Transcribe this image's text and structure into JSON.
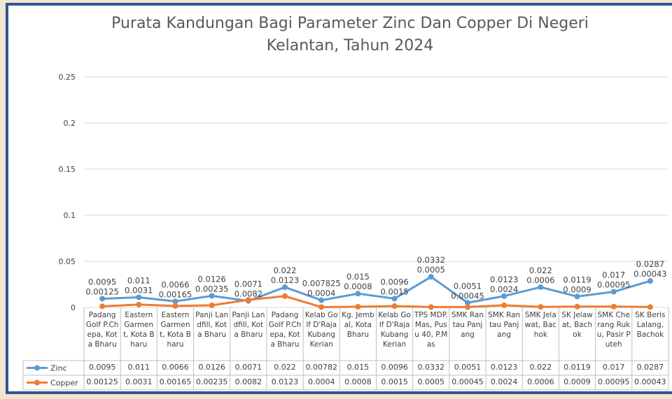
{
  "chart_data": {
    "type": "line",
    "title": "Purata Kandungan Bagi Parameter Zinc Dan Copper Di Negeri Kelantan, Tahun 2024",
    "categories": [
      "Padang Golf P.Chepa, Kota Bharu",
      "Eastern Garment, Kota Bharu",
      "Eastern Garment, Kota Bharu",
      "Panji Landfill, Kota Bharu",
      "Panji Landfill, Kota Bharu",
      "Padang Golf P.Chepa, Kota Bharu",
      "Kelab Golf D'Raja Kubang Kerian",
      "Kg. Jembal, Kota Bharu",
      "Kelab Golf D'Raja Kubang Kerian",
      "TPS MDP.Mas, Pusu 40, P.Mas",
      "SMK Rantau Panjang",
      "SMK Rantau Panjang",
      "SMK Jelawat, Bachok",
      "SK Jelawat, Bachok",
      "SMK Cherang Ruku, Pasir Puteh",
      "SK Beris Lalang, Bachok"
    ],
    "series": [
      {
        "name": "Zinc",
        "color": "#5b9bd5",
        "values": [
          0.0095,
          0.011,
          0.0066,
          0.0126,
          0.0071,
          0.022,
          0.007825,
          0.015,
          0.0096,
          0.0332,
          0.0051,
          0.0123,
          0.022,
          0.0119,
          0.017,
          0.0287
        ],
        "value_labels": [
          "0.0095",
          "0.011",
          "0.0066",
          "0.0126",
          "0.0071",
          "0.022",
          "0.00782",
          "0.015",
          "0.0096",
          "0.0332",
          "0.0051",
          "0.0123",
          "0.022",
          "0.0119",
          "0.017",
          "0.0287"
        ]
      },
      {
        "name": "Copper",
        "color": "#ed7d31",
        "values": [
          0.00125,
          0.0031,
          0.00165,
          0.00235,
          0.0082,
          0.0123,
          0.0004,
          0.0008,
          0.0015,
          0.0005,
          0.00045,
          0.0024,
          0.0006,
          0.0009,
          0.00095,
          0.00043
        ]
      }
    ],
    "ylim": [
      0,
      0.25
    ],
    "yticks": [
      0,
      0.05,
      0.1,
      0.15,
      0.2,
      0.25
    ],
    "grid": true
  }
}
